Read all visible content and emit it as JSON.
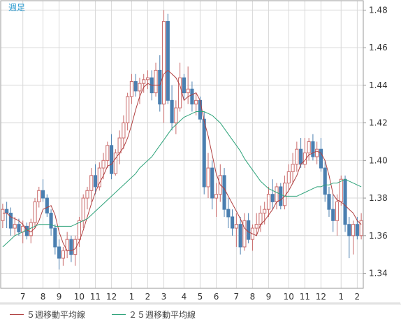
{
  "colors": {
    "bull": "#c96a6a",
    "bear": "#4a7fb0",
    "ma5": "#b04040",
    "ma25": "#2ea37a",
    "grid": "#d9d9d9",
    "axis_text": "#333333",
    "frame": "#9a9a9a",
    "period_label": "#2a9ad0"
  },
  "chart_data": {
    "type": "candlestick",
    "title": "週足",
    "ylim": [
      1.332,
      1.485
    ],
    "y_ticks": [
      "1.48",
      "1.46",
      "1.44",
      "1.42",
      "1.40",
      "1.38",
      "1.36",
      "1.34"
    ],
    "x_tick_labels": [
      "7",
      "8",
      "9",
      "10",
      "11",
      "12",
      "1",
      "2",
      "3",
      "4",
      "5",
      "6",
      "7",
      "8",
      "9",
      "10",
      "11",
      "12",
      "1",
      "2"
    ],
    "x_tick_week_index": [
      5,
      10,
      14,
      19,
      23,
      27,
      32,
      36,
      40,
      45,
      49,
      53,
      58,
      62,
      66,
      71,
      75,
      79,
      84,
      88
    ],
    "ohlc": [
      [
        1.368,
        1.377,
        1.364,
        1.374
      ],
      [
        1.374,
        1.378,
        1.364,
        1.372
      ],
      [
        1.372,
        1.375,
        1.36,
        1.364
      ],
      [
        1.364,
        1.37,
        1.36,
        1.366
      ],
      [
        1.366,
        1.369,
        1.36,
        1.362
      ],
      [
        1.362,
        1.368,
        1.356,
        1.365
      ],
      [
        1.365,
        1.367,
        1.358,
        1.36
      ],
      [
        1.36,
        1.369,
        1.356,
        1.367
      ],
      [
        1.367,
        1.38,
        1.364,
        1.378
      ],
      [
        1.378,
        1.386,
        1.375,
        1.384
      ],
      [
        1.384,
        1.39,
        1.378,
        1.38
      ],
      [
        1.38,
        1.382,
        1.37,
        1.372
      ],
      [
        1.372,
        1.374,
        1.36,
        1.364
      ],
      [
        1.364,
        1.366,
        1.35,
        1.354
      ],
      [
        1.354,
        1.358,
        1.342,
        1.348
      ],
      [
        1.348,
        1.354,
        1.344,
        1.352
      ],
      [
        1.352,
        1.362,
        1.348,
        1.358
      ],
      [
        1.358,
        1.36,
        1.346,
        1.35
      ],
      [
        1.35,
        1.36,
        1.344,
        1.358
      ],
      [
        1.358,
        1.37,
        1.354,
        1.368
      ],
      [
        1.368,
        1.382,
        1.364,
        1.38
      ],
      [
        1.38,
        1.386,
        1.374,
        1.384
      ],
      [
        1.384,
        1.396,
        1.378,
        1.392
      ],
      [
        1.392,
        1.398,
        1.382,
        1.386
      ],
      [
        1.386,
        1.399,
        1.384,
        1.396
      ],
      [
        1.396,
        1.404,
        1.39,
        1.4
      ],
      [
        1.4,
        1.41,
        1.396,
        1.408
      ],
      [
        1.408,
        1.414,
        1.39,
        1.393
      ],
      [
        1.393,
        1.406,
        1.392,
        1.404
      ],
      [
        1.404,
        1.416,
        1.398,
        1.412
      ],
      [
        1.412,
        1.424,
        1.406,
        1.42
      ],
      [
        1.42,
        1.436,
        1.416,
        1.434
      ],
      [
        1.434,
        1.446,
        1.43,
        1.442
      ],
      [
        1.442,
        1.446,
        1.434,
        1.437
      ],
      [
        1.437,
        1.444,
        1.43,
        1.441
      ],
      [
        1.441,
        1.446,
        1.436,
        1.443
      ],
      [
        1.443,
        1.448,
        1.438,
        1.444
      ],
      [
        1.444,
        1.448,
        1.432,
        1.436
      ],
      [
        1.436,
        1.452,
        1.434,
        1.448
      ],
      [
        1.448,
        1.456,
        1.426,
        1.43
      ],
      [
        1.43,
        1.48,
        1.42,
        1.474
      ],
      [
        1.474,
        1.478,
        1.43,
        1.432
      ],
      [
        1.432,
        1.44,
        1.416,
        1.42
      ],
      [
        1.42,
        1.432,
        1.414,
        1.428
      ],
      [
        1.428,
        1.452,
        1.426,
        1.444
      ],
      [
        1.444,
        1.446,
        1.432,
        1.436
      ],
      [
        1.436,
        1.45,
        1.43,
        1.438
      ],
      [
        1.438,
        1.442,
        1.426,
        1.43
      ],
      [
        1.43,
        1.436,
        1.424,
        1.432
      ],
      [
        1.432,
        1.434,
        1.42,
        1.422
      ],
      [
        1.422,
        1.426,
        1.382,
        1.386
      ],
      [
        1.386,
        1.404,
        1.38,
        1.396
      ],
      [
        1.396,
        1.4,
        1.374,
        1.38
      ],
      [
        1.38,
        1.388,
        1.37,
        1.382
      ],
      [
        1.382,
        1.398,
        1.378,
        1.392
      ],
      [
        1.392,
        1.396,
        1.37,
        1.374
      ],
      [
        1.374,
        1.38,
        1.364,
        1.37
      ],
      [
        1.37,
        1.374,
        1.36,
        1.364
      ],
      [
        1.364,
        1.372,
        1.354,
        1.366
      ],
      [
        1.366,
        1.37,
        1.35,
        1.354
      ],
      [
        1.354,
        1.372,
        1.352,
        1.368
      ],
      [
        1.368,
        1.372,
        1.356,
        1.358
      ],
      [
        1.358,
        1.366,
        1.352,
        1.364
      ],
      [
        1.364,
        1.372,
        1.36,
        1.366
      ],
      [
        1.366,
        1.376,
        1.362,
        1.372
      ],
      [
        1.372,
        1.378,
        1.366,
        1.374
      ],
      [
        1.374,
        1.386,
        1.37,
        1.382
      ],
      [
        1.382,
        1.39,
        1.374,
        1.378
      ],
      [
        1.378,
        1.388,
        1.374,
        1.386
      ],
      [
        1.386,
        1.388,
        1.374,
        1.376
      ],
      [
        1.376,
        1.392,
        1.374,
        1.388
      ],
      [
        1.388,
        1.398,
        1.384,
        1.394
      ],
      [
        1.394,
        1.404,
        1.388,
        1.398
      ],
      [
        1.398,
        1.41,
        1.394,
        1.406
      ],
      [
        1.406,
        1.412,
        1.396,
        1.398
      ],
      [
        1.398,
        1.412,
        1.396,
        1.404
      ],
      [
        1.404,
        1.412,
        1.4,
        1.41
      ],
      [
        1.41,
        1.414,
        1.4,
        1.402
      ],
      [
        1.402,
        1.41,
        1.398,
        1.406
      ],
      [
        1.406,
        1.412,
        1.394,
        1.396
      ],
      [
        1.396,
        1.4,
        1.378,
        1.382
      ],
      [
        1.382,
        1.386,
        1.37,
        1.374
      ],
      [
        1.374,
        1.382,
        1.362,
        1.368
      ],
      [
        1.368,
        1.382,
        1.36,
        1.378
      ],
      [
        1.378,
        1.392,
        1.376,
        1.39
      ],
      [
        1.39,
        1.392,
        1.362,
        1.366
      ],
      [
        1.366,
        1.37,
        1.348,
        1.36
      ],
      [
        1.36,
        1.368,
        1.35,
        1.366
      ],
      [
        1.366,
        1.37,
        1.358,
        1.36
      ],
      [
        1.36,
        1.372,
        1.358,
        1.368
      ]
    ],
    "series": [
      {
        "name": "５週移動平均線",
        "values": [
          1.372,
          1.372,
          1.37,
          1.369,
          1.368,
          1.366,
          1.363,
          1.362,
          1.364,
          1.368,
          1.374,
          1.375,
          1.376,
          1.371,
          1.362,
          1.356,
          1.352,
          1.352,
          1.353,
          1.357,
          1.363,
          1.37,
          1.377,
          1.383,
          1.388,
          1.392,
          1.397,
          1.398,
          1.401,
          1.404,
          1.407,
          1.412,
          1.419,
          1.427,
          1.434,
          1.439,
          1.441,
          1.44,
          1.44,
          1.44,
          1.446,
          1.448,
          1.446,
          1.444,
          1.44,
          1.432,
          1.434,
          1.435,
          1.436,
          1.432,
          1.421,
          1.413,
          1.403,
          1.393,
          1.387,
          1.385,
          1.381,
          1.377,
          1.373,
          1.369,
          1.364,
          1.362,
          1.361,
          1.36,
          1.366,
          1.368,
          1.371,
          1.374,
          1.378,
          1.379,
          1.381,
          1.384,
          1.388,
          1.392,
          1.398,
          1.4,
          1.403,
          1.404,
          1.405,
          1.404,
          1.4,
          1.392,
          1.382,
          1.379,
          1.378,
          1.376,
          1.374,
          1.372,
          1.368,
          1.366
        ]
      },
      {
        "name": "２５週移動平均線",
        "values": [
          1.354,
          1.356,
          1.358,
          1.36,
          1.361,
          1.362,
          1.363,
          1.364,
          1.365,
          1.366,
          1.366,
          1.366,
          1.366,
          1.365,
          1.365,
          1.365,
          1.365,
          1.365,
          1.366,
          1.367,
          1.368,
          1.369,
          1.371,
          1.373,
          1.375,
          1.377,
          1.379,
          1.381,
          1.383,
          1.385,
          1.387,
          1.389,
          1.391,
          1.393,
          1.396,
          1.398,
          1.4,
          1.402,
          1.405,
          1.408,
          1.411,
          1.414,
          1.417,
          1.419,
          1.421,
          1.423,
          1.424,
          1.425,
          1.426,
          1.426,
          1.426,
          1.425,
          1.424,
          1.422,
          1.42,
          1.417,
          1.414,
          1.411,
          1.408,
          1.405,
          1.401,
          1.398,
          1.395,
          1.392,
          1.389,
          1.387,
          1.385,
          1.384,
          1.383,
          1.382,
          1.381,
          1.381,
          1.381,
          1.381,
          1.382,
          1.383,
          1.384,
          1.385,
          1.386,
          1.386,
          1.387,
          1.387,
          1.388,
          1.388,
          1.389,
          1.39,
          1.389,
          1.388,
          1.387,
          1.386
        ]
      }
    ]
  }
}
